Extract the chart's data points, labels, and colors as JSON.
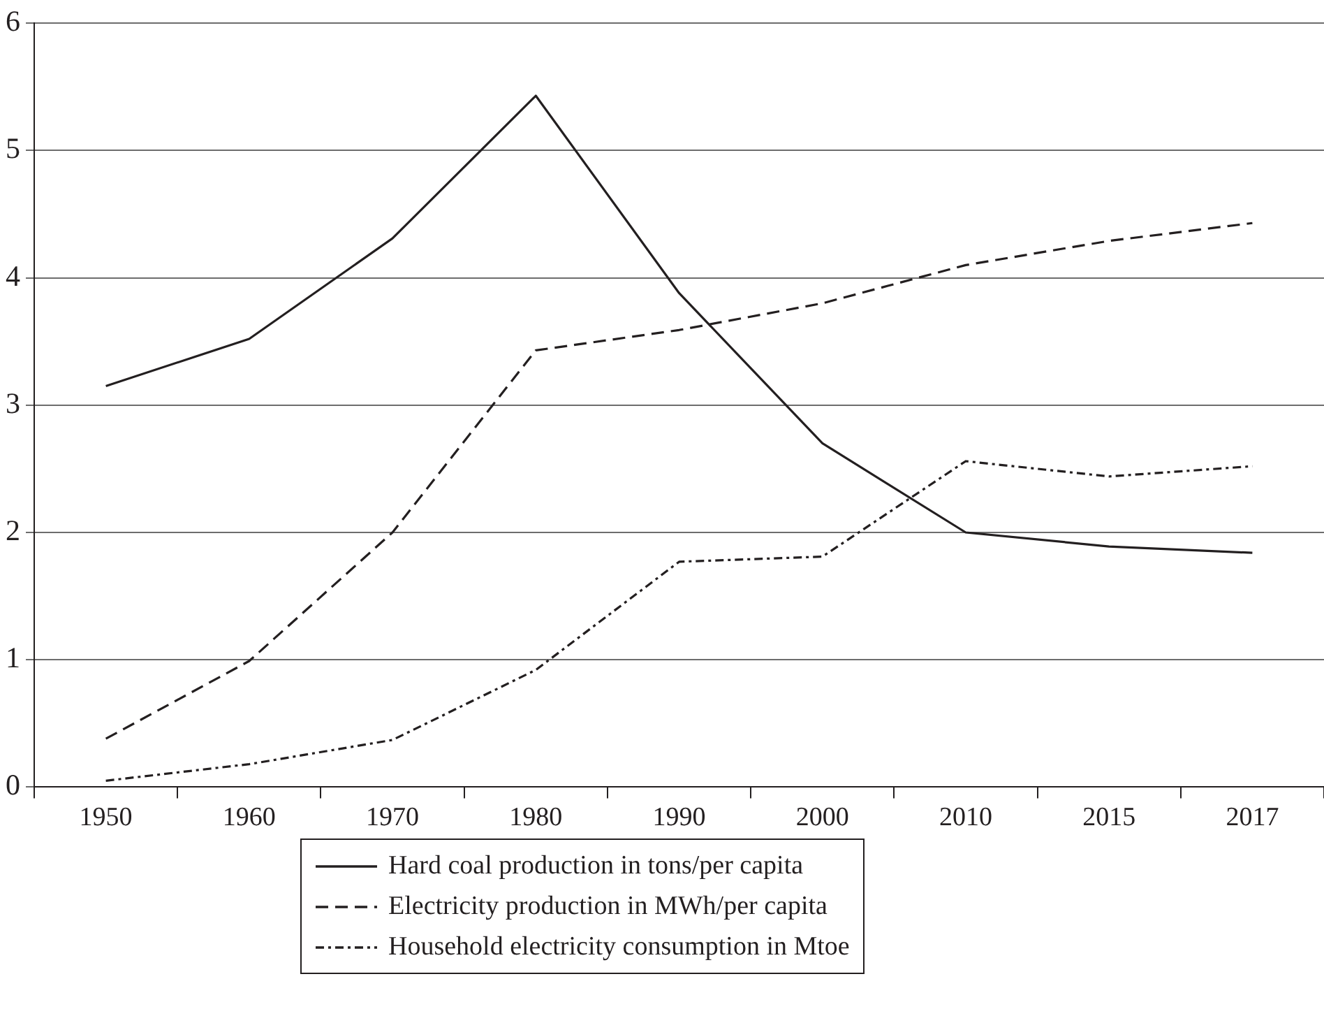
{
  "chart_data": {
    "type": "line",
    "categories": [
      "1950",
      "1960",
      "1970",
      "1980",
      "1990",
      "2000",
      "2010",
      "2015",
      "2017"
    ],
    "ylim": [
      0,
      6
    ],
    "yticks": [
      0,
      1,
      2,
      3,
      4,
      5,
      6
    ],
    "grid": "y",
    "legend": "bottom",
    "marker": "none",
    "series": [
      {
        "name": "Hard coal production in tons/per capita",
        "color": "#231f20",
        "line_style": "solid",
        "values": [
          3.15,
          3.52,
          4.31,
          5.43,
          3.88,
          2.7,
          2.0,
          1.89,
          1.84
        ]
      },
      {
        "name": "Electricity production in MWh/per capita",
        "color": "#231f20",
        "line_style": "dashed",
        "values": [
          0.38,
          0.99,
          2.0,
          3.43,
          3.59,
          3.8,
          4.1,
          4.29,
          4.43
        ]
      },
      {
        "name": "Household electricity consumption in Mtoe",
        "color": "#231f20",
        "line_style": "dashdot",
        "values": [
          0.05,
          0.18,
          0.37,
          0.92,
          1.77,
          1.81,
          2.56,
          2.44,
          2.52
        ]
      }
    ]
  }
}
